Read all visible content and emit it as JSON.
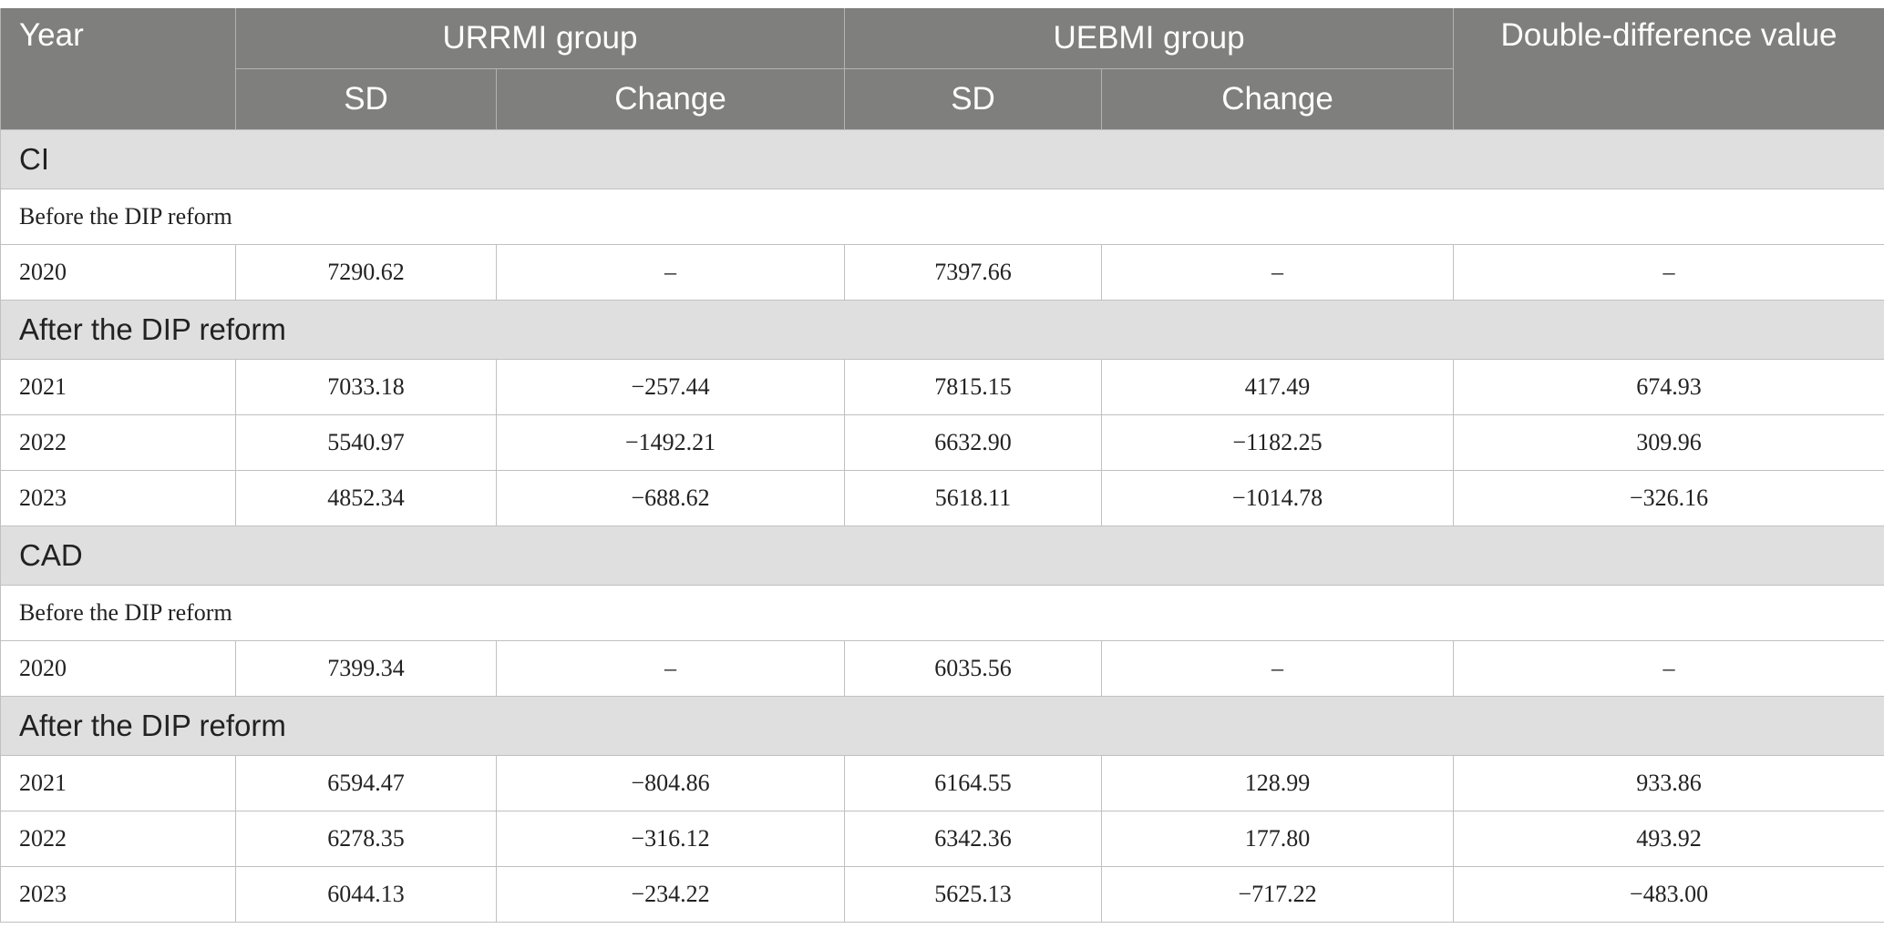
{
  "header": {
    "year": "Year",
    "group1": "URRMI group",
    "group2": "UEBMI group",
    "double_diff": "Double-difference value",
    "sub": [
      "SD",
      "Change",
      "SD",
      "Change"
    ]
  },
  "sections": [
    {
      "label": "CI",
      "blocks": [
        {
          "label": "Before the DIP reform",
          "style": "sub",
          "rows": [
            [
              "2020",
              "7290.62",
              "–",
              "7397.66",
              "–",
              "–"
            ]
          ]
        },
        {
          "label": "After the DIP reform",
          "style": "section",
          "rows": [
            [
              "2021",
              "7033.18",
              "−257.44",
              "7815.15",
              "417.49",
              "674.93"
            ],
            [
              "2022",
              "5540.97",
              "−1492.21",
              "6632.90",
              "−1182.25",
              "309.96"
            ],
            [
              "2023",
              "4852.34",
              "−688.62",
              "5618.11",
              "−1014.78",
              "−326.16"
            ]
          ]
        }
      ]
    },
    {
      "label": "CAD",
      "blocks": [
        {
          "label": "Before the DIP reform",
          "style": "sub",
          "rows": [
            [
              "2020",
              "7399.34",
              "–",
              "6035.56",
              "–",
              "–"
            ]
          ]
        },
        {
          "label": "After the DIP reform",
          "style": "section",
          "rows": [
            [
              "2021",
              "6594.47",
              "−804.86",
              "6164.55",
              "128.99",
              "933.86"
            ],
            [
              "2022",
              "6278.35",
              "−316.12",
              "6342.36",
              "177.80",
              "493.92"
            ],
            [
              "2023",
              "6044.13",
              "−234.22",
              "5625.13",
              "−717.22",
              "−483.00"
            ]
          ]
        }
      ]
    }
  ]
}
